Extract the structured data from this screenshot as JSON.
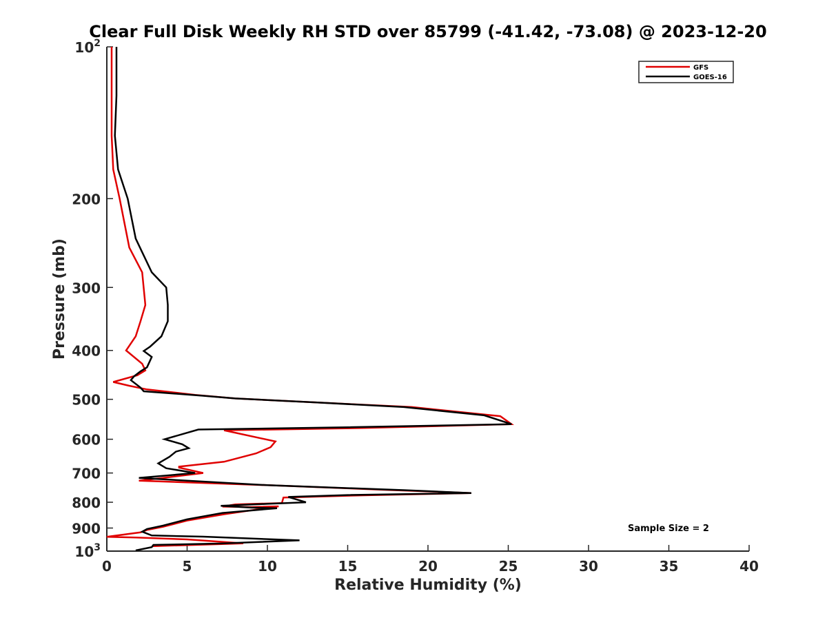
{
  "chart_data": {
    "type": "line",
    "title": "Clear Full Disk Weekly RH STD over 85799 (-41.42, -73.08) @ 2023-12-20",
    "xlabel": "Relative Humidity (%)",
    "ylabel": "Pressure (mb)",
    "xlim": [
      0,
      40
    ],
    "ylim": [
      100,
      1000
    ],
    "y_scale": "log",
    "y_reversed": true,
    "x_ticks": [
      "0",
      "5",
      "10",
      "15",
      "20",
      "25",
      "30",
      "35",
      "40"
    ],
    "y_ticks": [
      {
        "value": 100,
        "base": "10",
        "exp": "2"
      },
      {
        "value": 200,
        "label": "200"
      },
      {
        "value": 300,
        "label": "300"
      },
      {
        "value": 400,
        "label": "400"
      },
      {
        "value": 500,
        "label": "500"
      },
      {
        "value": 600,
        "label": "600"
      },
      {
        "value": 700,
        "label": "700"
      },
      {
        "value": 800,
        "label": "800"
      },
      {
        "value": 900,
        "label": "900"
      },
      {
        "value": 1000,
        "base": "10",
        "exp": "3"
      }
    ],
    "grid": false,
    "legend_position": "top-right",
    "annotation": "Sample Size = 2",
    "series": [
      {
        "name": "GFS",
        "color": "#e00000",
        "points": [
          [
            0.3,
            100
          ],
          [
            0.3,
            125
          ],
          [
            0.3,
            150
          ],
          [
            0.4,
            175
          ],
          [
            0.8,
            200
          ],
          [
            1.4,
            250
          ],
          [
            2.2,
            280
          ],
          [
            2.4,
            325
          ],
          [
            2.1,
            350
          ],
          [
            1.8,
            375
          ],
          [
            1.2,
            400
          ],
          [
            2.2,
            425
          ],
          [
            2.4,
            438
          ],
          [
            1.9,
            448
          ],
          [
            0.4,
            462
          ],
          [
            1.4,
            470
          ],
          [
            2.5,
            478
          ],
          [
            5.5,
            490
          ],
          [
            8.0,
            498
          ],
          [
            14.0,
            509
          ],
          [
            19.0,
            518
          ],
          [
            24.5,
            540
          ],
          [
            25.2,
            560
          ],
          [
            16.0,
            570
          ],
          [
            7.3,
            576
          ],
          [
            10.5,
            606
          ],
          [
            10.2,
            622
          ],
          [
            9.3,
            640
          ],
          [
            7.3,
            665
          ],
          [
            4.5,
            680
          ],
          [
            4.5,
            683
          ],
          [
            6.0,
            700
          ],
          [
            3.5,
            716
          ],
          [
            2.0,
            725
          ],
          [
            10.0,
            740
          ],
          [
            17.0,
            755
          ],
          [
            22.7,
            767
          ],
          [
            16.0,
            775
          ],
          [
            11.0,
            783
          ],
          [
            10.9,
            803
          ],
          [
            8.0,
            808
          ],
          [
            7.2,
            816
          ],
          [
            9.0,
            818
          ],
          [
            10.7,
            815
          ],
          [
            7.3,
            845
          ],
          [
            5.0,
            870
          ],
          [
            3.5,
            895
          ],
          [
            2.5,
            908
          ],
          [
            2.1,
            918
          ],
          [
            0.0,
            937
          ],
          [
            1.8,
            940
          ],
          [
            5.0,
            948
          ],
          [
            8.5,
            965
          ],
          [
            2.8,
            978
          ]
        ]
      },
      {
        "name": "GOES-16",
        "color": "#000000",
        "points": [
          [
            0.6,
            100
          ],
          [
            0.6,
            125
          ],
          [
            0.5,
            150
          ],
          [
            0.7,
            175
          ],
          [
            1.3,
            200
          ],
          [
            1.8,
            240
          ],
          [
            2.8,
            280
          ],
          [
            3.7,
            300
          ],
          [
            3.8,
            325
          ],
          [
            3.8,
            350
          ],
          [
            3.4,
            375
          ],
          [
            2.7,
            393
          ],
          [
            2.3,
            401
          ],
          [
            2.8,
            412
          ],
          [
            2.5,
            432
          ],
          [
            2.1,
            440
          ],
          [
            1.7,
            450
          ],
          [
            1.5,
            458
          ],
          [
            2.1,
            474
          ],
          [
            2.3,
            482
          ],
          [
            6.0,
            492
          ],
          [
            8.0,
            498
          ],
          [
            13.0,
            507
          ],
          [
            18.5,
            518
          ],
          [
            23.5,
            538
          ],
          [
            25.2,
            560
          ],
          [
            15.0,
            568
          ],
          [
            5.7,
            574
          ],
          [
            3.6,
            600
          ],
          [
            4.7,
            614
          ],
          [
            5.1,
            625
          ],
          [
            4.3,
            635
          ],
          [
            3.9,
            650
          ],
          [
            3.2,
            670
          ],
          [
            3.7,
            685
          ],
          [
            5.5,
            700
          ],
          [
            2.0,
            716
          ],
          [
            10.0,
            740
          ],
          [
            18.5,
            757
          ],
          [
            22.7,
            767
          ],
          [
            15.0,
            774
          ],
          [
            11.3,
            781
          ],
          [
            12.4,
            800
          ],
          [
            10.0,
            806
          ],
          [
            7.1,
            813
          ],
          [
            9.0,
            820
          ],
          [
            10.6,
            822
          ],
          [
            7.2,
            840
          ],
          [
            5.0,
            865
          ],
          [
            3.5,
            890
          ],
          [
            2.5,
            904
          ],
          [
            2.2,
            915
          ],
          [
            2.8,
            931
          ],
          [
            6.0,
            936
          ],
          [
            12.0,
            952
          ],
          [
            7.0,
            966
          ],
          [
            2.9,
            972
          ],
          [
            2.8,
            982
          ],
          [
            1.8,
            997
          ]
        ]
      }
    ]
  }
}
